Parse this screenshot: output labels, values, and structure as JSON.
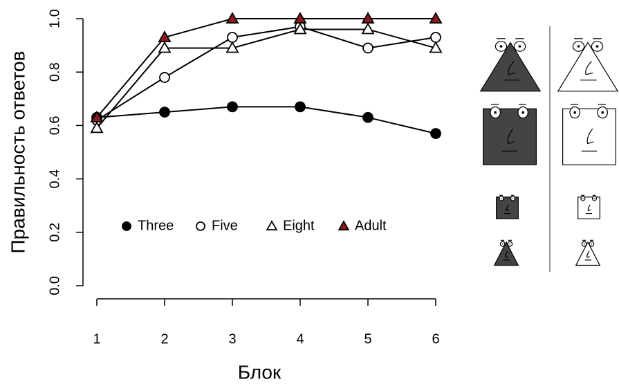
{
  "chart_data": {
    "type": "line",
    "x_label": "Блок",
    "y_label": "Правильность ответов",
    "x": [
      1,
      2,
      3,
      4,
      5,
      6
    ],
    "xlim": [
      1,
      6
    ],
    "xticks": [
      1,
      2,
      3,
      4,
      5,
      6
    ],
    "ylim": [
      0,
      1
    ],
    "yticks": [
      {
        "value": 0,
        "label": "0.0"
      },
      0.2,
      0.4,
      0.6,
      0.8,
      {
        "value": 1,
        "label": "1.0"
      }
    ],
    "line_color": "#000000",
    "series": [
      {
        "name": "Three",
        "marker": "circle",
        "filled": true,
        "color": "#000000",
        "values": [
          0.63,
          0.65,
          0.67,
          0.67,
          0.63,
          0.57
        ]
      },
      {
        "name": "Five",
        "marker": "circle",
        "filled": false,
        "color": "#000000",
        "values": [
          0.62,
          0.78,
          0.93,
          0.97,
          0.89,
          0.93
        ]
      },
      {
        "name": "Eight",
        "marker": "triangle",
        "filled": false,
        "color": "#000000",
        "values": [
          0.59,
          0.89,
          0.89,
          0.96,
          0.96,
          0.89
        ]
      },
      {
        "name": "Adult",
        "marker": "triangle",
        "filled": true,
        "color": "#8b1a1a",
        "values": [
          0.63,
          0.93,
          1.0,
          1.0,
          1.0,
          1.0
        ]
      }
    ]
  }
}
